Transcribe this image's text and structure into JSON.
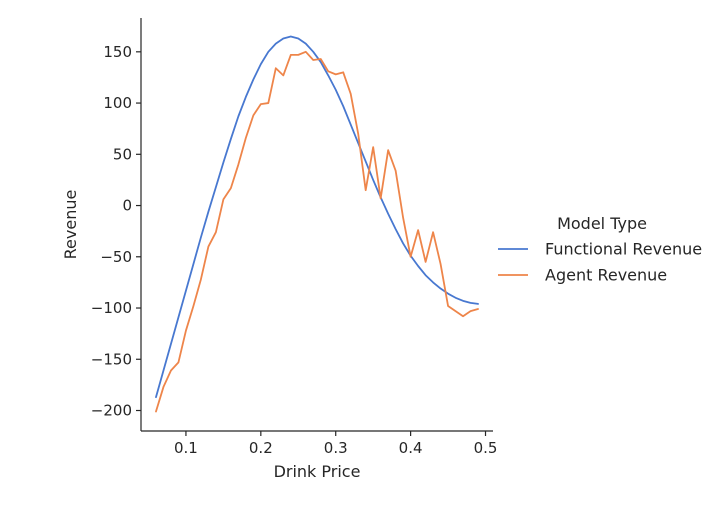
{
  "chart_data": {
    "type": "line",
    "xlabel": "Drink Price",
    "ylabel": "Revenue",
    "xlim": [
      0.04,
      0.51
    ],
    "ylim": [
      -220,
      183
    ],
    "xticks": [
      0.1,
      0.2,
      0.3,
      0.4,
      0.5
    ],
    "xtick_labels": [
      "0.1",
      "0.2",
      "0.3",
      "0.4",
      "0.5"
    ],
    "yticks": [
      -200,
      -150,
      -100,
      -50,
      0,
      50,
      100,
      150
    ],
    "ytick_labels": [
      "−200",
      "−150",
      "−100",
      "−50",
      "0",
      "50",
      "100",
      "150"
    ],
    "grid": false,
    "legend": {
      "title": "Model Type",
      "placement": "right"
    },
    "x": [
      0.06,
      0.07,
      0.08,
      0.09,
      0.1,
      0.11,
      0.12,
      0.13,
      0.14,
      0.15,
      0.16,
      0.17,
      0.18,
      0.19,
      0.2,
      0.21,
      0.22,
      0.23,
      0.24,
      0.25,
      0.26,
      0.27,
      0.28,
      0.29,
      0.3,
      0.31,
      0.32,
      0.33,
      0.34,
      0.35,
      0.36,
      0.37,
      0.38,
      0.39,
      0.4,
      0.41,
      0.42,
      0.43,
      0.44,
      0.45,
      0.46,
      0.47,
      0.48,
      0.49
    ],
    "series": [
      {
        "name": "Functional Revenue",
        "color": "#4878d0",
        "values": [
          -187,
          -161,
          -135,
          -109,
          -83,
          -57,
          -31,
          -6,
          18,
          42,
          65,
          87,
          106,
          123,
          138,
          150,
          158,
          163,
          165,
          163,
          158,
          150,
          140,
          127,
          113,
          97,
          79,
          61,
          43,
          25,
          8,
          -8,
          -23,
          -37,
          -49,
          -59,
          -68,
          -75,
          -81,
          -86,
          -90,
          -93,
          -95,
          -96
        ]
      },
      {
        "name": "Agent Revenue",
        "color": "#ee854a",
        "values": [
          -201,
          -177,
          -161,
          -153,
          -122,
          -98,
          -72,
          -40,
          -26,
          6,
          17,
          40,
          66,
          88,
          99,
          100,
          134,
          127,
          147,
          147,
          150,
          142,
          143,
          131,
          128,
          130,
          109,
          70,
          15,
          57,
          7,
          54,
          34,
          -12,
          -50,
          -24,
          -55,
          -26,
          -57,
          -98,
          -103,
          -108,
          -103,
          -101
        ]
      }
    ]
  }
}
